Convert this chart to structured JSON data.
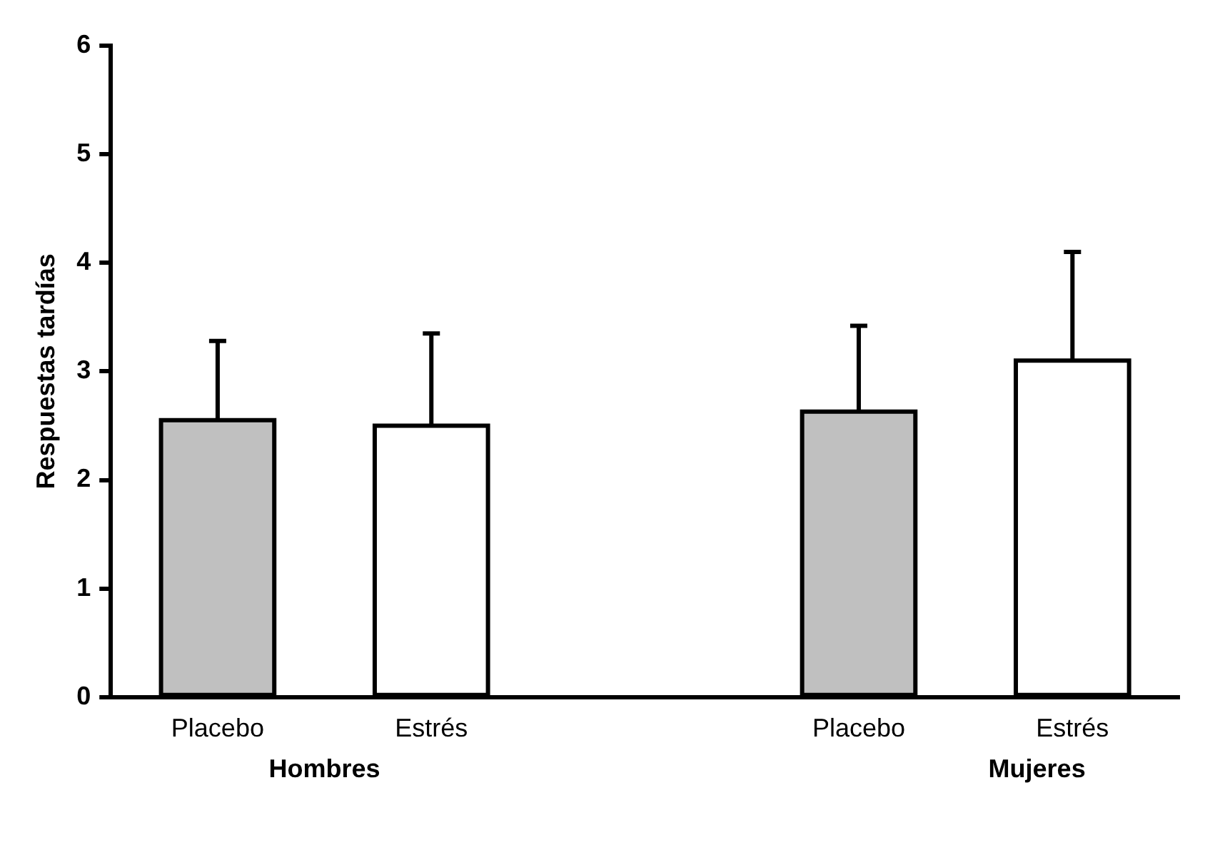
{
  "chart_data": {
    "type": "bar",
    "ylabel": "Respuestas tardías",
    "categories": [
      "Placebo",
      "Estrés",
      null,
      "Placebo",
      "Estrés"
    ],
    "values": [
      2.55,
      2.5,
      null,
      2.63,
      3.1
    ],
    "colors": [
      "#c0c0c0",
      "#ffffff",
      null,
      "#c0c0c0",
      "#ffffff"
    ],
    "errors": [
      [
        2.55,
        3.28
      ],
      [
        2.5,
        3.35
      ],
      null,
      [
        2.63,
        3.42
      ],
      [
        3.1,
        4.1
      ]
    ],
    "ylim": [
      0,
      6
    ],
    "yticks": [
      0,
      1,
      2,
      3,
      4,
      5,
      6
    ],
    "annotations": [
      "Hombres",
      "Mujeres"
    ],
    "grid": false,
    "legend": false
  }
}
